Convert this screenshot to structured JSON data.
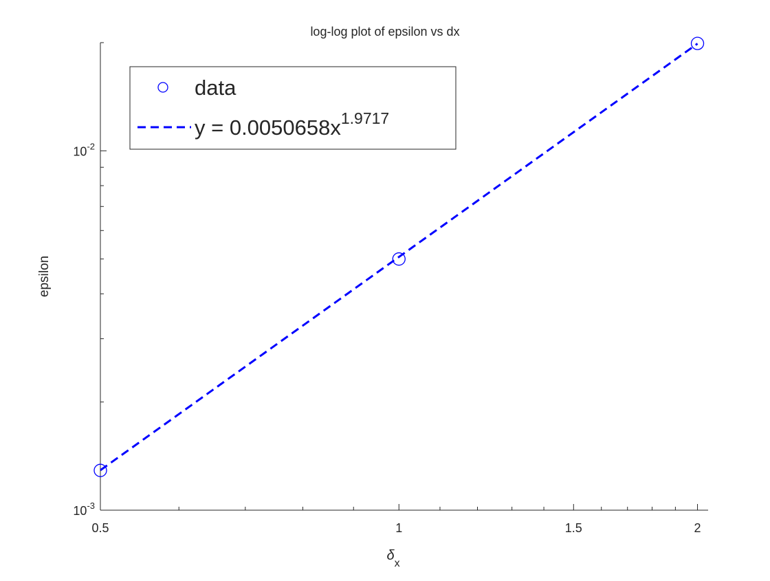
{
  "chart_data": {
    "type": "line",
    "title": "log-log plot of epsilon vs dx",
    "xlabel": "δ",
    "xlabel_subscript": "x",
    "ylabel": "epsilon",
    "x": [
      0.5,
      1,
      2
    ],
    "series": [
      {
        "name": "data",
        "color": "#0000ff",
        "marker": "circle",
        "line": "none",
        "values": [
          0.00129,
          0.005,
          0.0199
        ]
      },
      {
        "name": "y = 0.0050658x",
        "name_superscript": "1.9717",
        "color": "#0000ff",
        "marker": "none",
        "line": "dashed",
        "values": [
          0.001292,
          0.0050658,
          0.01987
        ]
      }
    ],
    "xscale": "log",
    "yscale": "log",
    "xlim": [
      0.5,
      2.05
    ],
    "ylim": [
      0.001,
      0.02
    ],
    "xticks": [
      0.5,
      1,
      1.5,
      2
    ],
    "xminorticks": [
      0.6,
      0.7,
      0.8,
      0.9,
      1.1,
      1.2,
      1.3,
      1.4,
      1.6,
      1.7,
      1.8,
      1.9
    ],
    "yticks": [
      {
        "value": 0.001,
        "label": "10",
        "exponent": "-3"
      },
      {
        "value": 0.01,
        "label": "10",
        "exponent": "-2"
      }
    ],
    "yminorticks": [
      0.002,
      0.003,
      0.004,
      0.005,
      0.006,
      0.007,
      0.008,
      0.009,
      0.02
    ],
    "legend": "upper left",
    "grid": false
  }
}
